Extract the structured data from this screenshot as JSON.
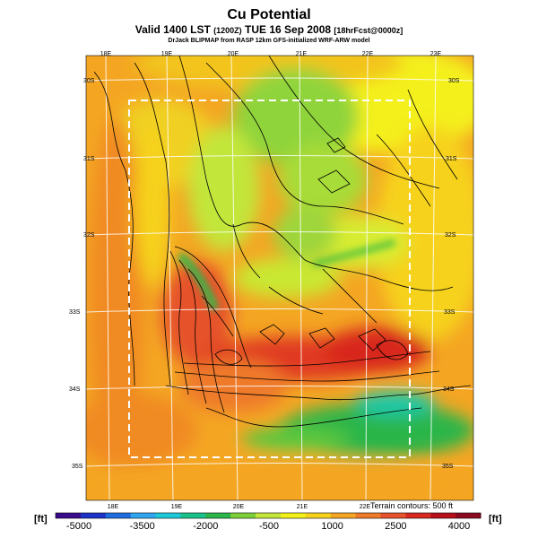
{
  "header": {
    "title": "Cu Potential",
    "subtitle_main": "Valid 1400 LST",
    "subtitle_run": "(1200Z)",
    "subtitle_date": "TUE 16 Sep 2008",
    "subtitle_fcst": "[18hrFcst@0000z]",
    "credit": "DrJack BLIPMAP from RASP 12km GFS-initialized WRF-ARW model"
  },
  "map": {
    "lon_labels_top": [
      "18E",
      "19E",
      "20E",
      "21E",
      "22E",
      "23E"
    ],
    "lon_labels_bottom": [
      "18E",
      "19E",
      "20E",
      "21E",
      "22E"
    ],
    "lat_labels_left": [
      "30S",
      "31S",
      "32S",
      "33S",
      "34S",
      "35S"
    ],
    "lat_labels_right": [
      "30S",
      "31S",
      "32S",
      "33S",
      "34S",
      "35S"
    ],
    "terrain_note": "Terrain contours: 500 ft"
  },
  "colorbar": {
    "unit_left": "[ft]",
    "unit_right": "[ft]",
    "tick_labels": [
      "-5000",
      "-3500",
      "-2000",
      "-500",
      "1000",
      "2500",
      "4000"
    ],
    "colors": [
      "#3a0a8c",
      "#1c32c8",
      "#1f6be0",
      "#2fa6ef",
      "#1ec8d8",
      "#19c28a",
      "#2bb54a",
      "#7dd03a",
      "#c3e63a",
      "#f2f21a",
      "#f6d21c",
      "#f4a623",
      "#ee7a2a",
      "#e6522b",
      "#d8281f",
      "#b8101a",
      "#8c0a22"
    ]
  }
}
